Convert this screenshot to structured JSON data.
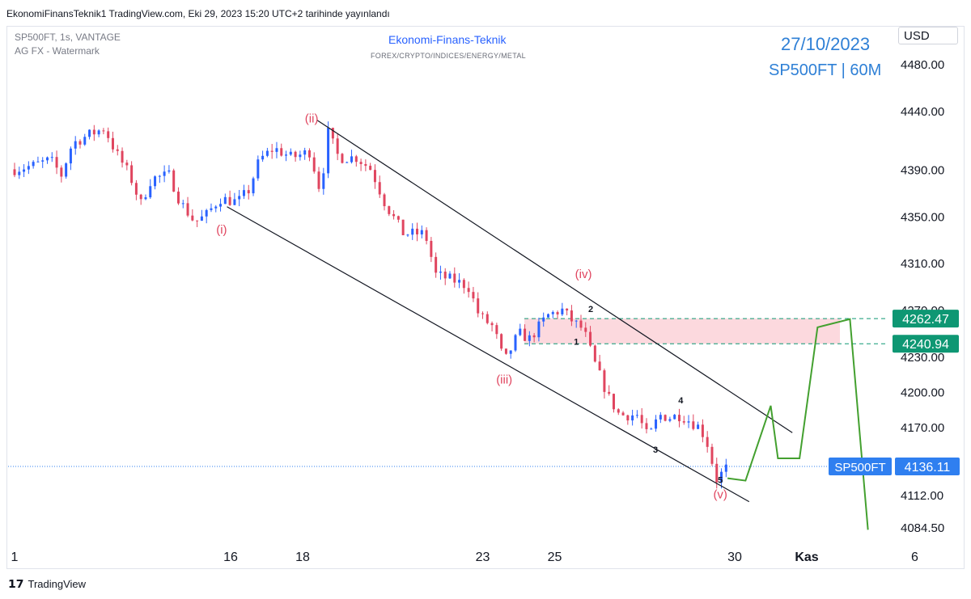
{
  "header": {
    "published": "EkonomiFinansTeknik1 TradingView.com, Eki 29, 2023 15:20 UTC+2 tarihinde yayınlandı"
  },
  "symbol_info": {
    "line1": "SP500FT, 1s, VANTAGE",
    "line2": "AG FX - Watermark"
  },
  "watermark": {
    "title": "Ekonomi-Finans-Teknik",
    "subtitle": "FOREX/CRYPTO/INDICES/ENERGY/METAL"
  },
  "badge": {
    "date": "27/10/2023",
    "instrument": "SP500FT | 60M"
  },
  "currency": "USD",
  "footer": {
    "brand": "TradingView"
  },
  "colors": {
    "up": "#2962ff",
    "down": "#e0455f",
    "wave_label": "#e0455f",
    "projection": "#43a02f",
    "level_badge": "#0e9773",
    "price_badge": "#2f7ff0",
    "zone": "#fcd9de"
  },
  "chart_data": {
    "type": "candlestick",
    "symbol": "SP500FT",
    "interval": "1s",
    "x_ticks": [
      {
        "label": "1",
        "day": 10
      },
      {
        "label": "16",
        "day": 16
      },
      {
        "label": "18",
        "day": 18
      },
      {
        "label": "23",
        "day": 23
      },
      {
        "label": "25",
        "day": 25
      },
      {
        "label": "30",
        "day": 30
      },
      {
        "label": "Kas",
        "day": 32
      },
      {
        "label": "6",
        "day": 35
      }
    ],
    "y_ticks": [
      4480.0,
      4440.0,
      4390.0,
      4350.0,
      4310.0,
      4270.0,
      4230.0,
      4200.0,
      4170.0,
      4112.0,
      4084.5
    ],
    "price_path": [
      {
        "day": 10.0,
        "price": 4390
      },
      {
        "day": 10.5,
        "price": 4393
      },
      {
        "day": 11.0,
        "price": 4398
      },
      {
        "day": 11.3,
        "price": 4385
      },
      {
        "day": 11.6,
        "price": 4412
      },
      {
        "day": 12.1,
        "price": 4420
      },
      {
        "day": 12.5,
        "price": 4425
      },
      {
        "day": 12.8,
        "price": 4405
      },
      {
        "day": 13.2,
        "price": 4385
      },
      {
        "day": 13.5,
        "price": 4360
      },
      {
        "day": 13.8,
        "price": 4382
      },
      {
        "day": 14.3,
        "price": 4385
      },
      {
        "day": 14.6,
        "price": 4362
      },
      {
        "day": 15.0,
        "price": 4345
      },
      {
        "day": 15.3,
        "price": 4350
      },
      {
        "day": 15.7,
        "price": 4365
      },
      {
        "day": 16.2,
        "price": 4362
      },
      {
        "day": 16.5,
        "price": 4372
      },
      {
        "day": 16.8,
        "price": 4398
      },
      {
        "day": 17.2,
        "price": 4408
      },
      {
        "day": 17.7,
        "price": 4400
      },
      {
        "day": 18.2,
        "price": 4405
      },
      {
        "day": 18.5,
        "price": 4370
      },
      {
        "day": 18.7,
        "price": 4422
      },
      {
        "day": 19.0,
        "price": 4400
      },
      {
        "day": 19.5,
        "price": 4400
      },
      {
        "day": 19.9,
        "price": 4390
      },
      {
        "day": 20.3,
        "price": 4360
      },
      {
        "day": 20.8,
        "price": 4335
      },
      {
        "day": 21.4,
        "price": 4335
      },
      {
        "day": 21.7,
        "price": 4300
      },
      {
        "day": 22.2,
        "price": 4295
      },
      {
        "day": 22.6,
        "price": 4290
      },
      {
        "day": 22.9,
        "price": 4265
      },
      {
        "day": 23.3,
        "price": 4255
      },
      {
        "day": 23.6,
        "price": 4225
      },
      {
        "day": 24.0,
        "price": 4250
      },
      {
        "day": 24.3,
        "price": 4245
      },
      {
        "day": 24.8,
        "price": 4265
      },
      {
        "day": 25.2,
        "price": 4270
      },
      {
        "day": 25.5,
        "price": 4260
      },
      {
        "day": 25.8,
        "price": 4253
      },
      {
        "day": 26.1,
        "price": 4225
      },
      {
        "day": 26.5,
        "price": 4195
      },
      {
        "day": 26.8,
        "price": 4180
      },
      {
        "day": 27.3,
        "price": 4180
      },
      {
        "day": 27.6,
        "price": 4160
      },
      {
        "day": 27.9,
        "price": 4180
      },
      {
        "day": 28.2,
        "price": 4178
      },
      {
        "day": 28.5,
        "price": 4180
      },
      {
        "day": 29.0,
        "price": 4170
      },
      {
        "day": 29.2,
        "price": 4160
      },
      {
        "day": 29.5,
        "price": 4125
      },
      {
        "day": 29.8,
        "price": 4136
      }
    ],
    "channel": {
      "upper": [
        {
          "day": 18.4,
          "price": 4432
        },
        {
          "day": 31.6,
          "price": 4165
        }
      ],
      "lower": [
        {
          "day": 15.9,
          "price": 4358
        },
        {
          "day": 30.4,
          "price": 4106
        }
      ]
    },
    "wave_labels": [
      {
        "text": "(i)",
        "day": 15.75,
        "price": 4335
      },
      {
        "text": "(ii)",
        "day": 18.25,
        "price": 4430
      },
      {
        "text": "(iii)",
        "day": 23.6,
        "price": 4207
      },
      {
        "text": "(iv)",
        "day": 25.8,
        "price": 4297
      },
      {
        "text": "(v)",
        "day": 29.6,
        "price": 4109
      }
    ],
    "sub_wave_labels": [
      {
        "text": "1",
        "day": 25.6,
        "price": 4240
      },
      {
        "text": "2",
        "day": 26.0,
        "price": 4268
      },
      {
        "text": "3",
        "day": 27.8,
        "price": 4148
      },
      {
        "text": "4",
        "day": 28.5,
        "price": 4190
      },
      {
        "text": "5",
        "day": 29.6,
        "price": 4122
      }
    ],
    "projection": [
      {
        "day": 29.8,
        "price": 4126
      },
      {
        "day": 30.3,
        "price": 4124
      },
      {
        "day": 31.0,
        "price": 4188
      },
      {
        "day": 31.2,
        "price": 4143
      },
      {
        "day": 31.8,
        "price": 4143
      },
      {
        "day": 32.3,
        "price": 4255
      },
      {
        "day": 33.2,
        "price": 4262
      },
      {
        "day": 33.7,
        "price": 4082
      }
    ],
    "zone": {
      "low": 4240.94,
      "high": 4262.47
    },
    "levels": [
      {
        "value": 4262.47,
        "label": "4262.47"
      },
      {
        "value": 4240.94,
        "label": "4240.94"
      }
    ],
    "last_price": {
      "name": "SP500FT",
      "value": 4136.11,
      "label": "4136.11"
    }
  }
}
